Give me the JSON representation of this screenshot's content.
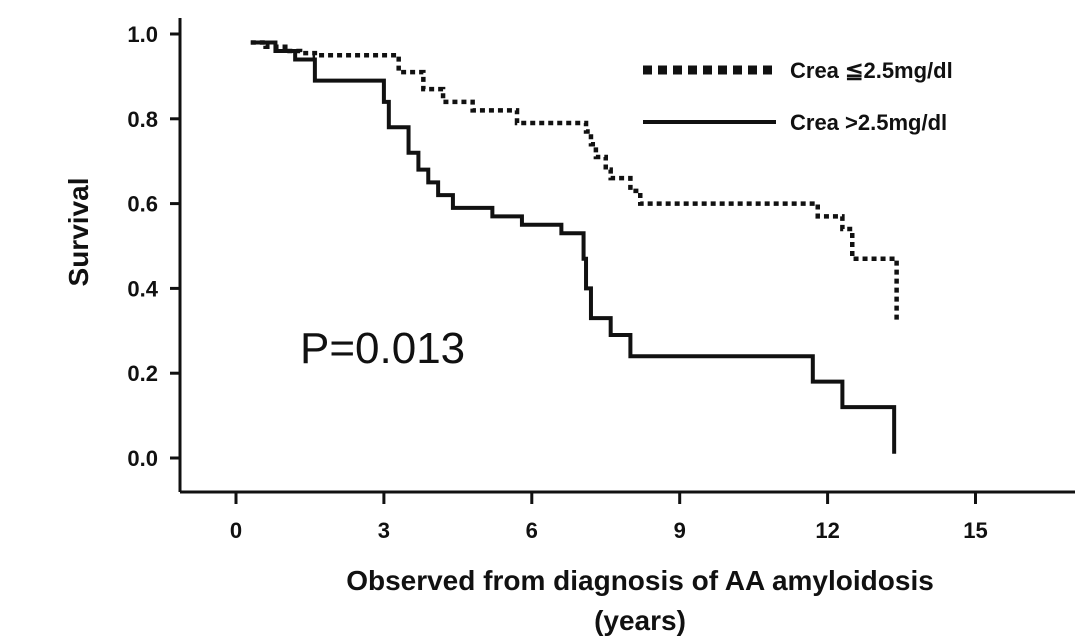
{
  "chart_data": {
    "type": "line",
    "subtype": "kaplan-meier step",
    "xlabel": "Observed from diagnosis of AA amyloidosis",
    "xlabel_line2": "(years)",
    "ylabel": "Survival",
    "xlim": [
      0,
      15
    ],
    "ylim": [
      0,
      1.0
    ],
    "xticks": [
      "0",
      "3",
      "6",
      "9",
      "12",
      "15"
    ],
    "yticks": [
      "0.0",
      "0.2",
      "0.4",
      "0.6",
      "0.8",
      "1.0"
    ],
    "annotation": "P=0.013",
    "legend_position": "top-right",
    "grid": false,
    "series": [
      {
        "name": "Crea ≦2.5mg/dl",
        "style": "dotted",
        "color": "#111111",
        "x": [
          0.3,
          0.6,
          1.0,
          1.3,
          1.6,
          3.0,
          3.3,
          3.8,
          4.2,
          4.8,
          5.7,
          6.9,
          7.1,
          7.2,
          7.3,
          7.5,
          7.6,
          8.0,
          8.2,
          11.6,
          11.8,
          12.3,
          12.5,
          13.3,
          13.4
        ],
        "y": [
          0.98,
          0.97,
          0.96,
          0.955,
          0.95,
          0.95,
          0.91,
          0.87,
          0.84,
          0.82,
          0.79,
          0.79,
          0.77,
          0.74,
          0.71,
          0.68,
          0.66,
          0.63,
          0.6,
          0.6,
          0.57,
          0.54,
          0.47,
          0.47,
          0.32
        ]
      },
      {
        "name": "Crea >2.5mg/dl",
        "style": "solid",
        "color": "#111111",
        "x": [
          0.3,
          0.8,
          1.2,
          1.6,
          2.8,
          3.0,
          3.1,
          3.5,
          3.7,
          3.9,
          4.1,
          4.4,
          5.2,
          5.8,
          6.6,
          7.0,
          7.05,
          7.1,
          7.2,
          7.6,
          8.0,
          11.6,
          11.7,
          12.3,
          13.2,
          13.35
        ],
        "y": [
          0.98,
          0.96,
          0.94,
          0.89,
          0.89,
          0.84,
          0.78,
          0.72,
          0.68,
          0.65,
          0.62,
          0.59,
          0.57,
          0.55,
          0.53,
          0.53,
          0.47,
          0.4,
          0.33,
          0.29,
          0.24,
          0.24,
          0.18,
          0.12,
          0.12,
          0.01
        ]
      }
    ]
  }
}
